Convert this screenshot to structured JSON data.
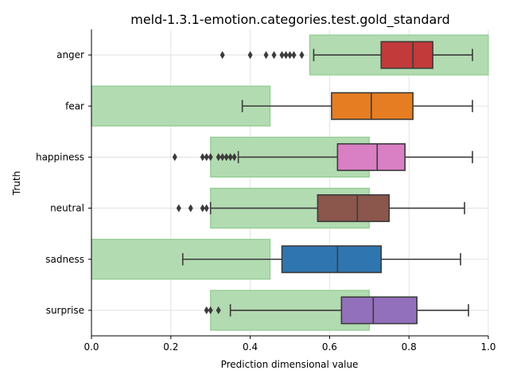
{
  "chart_data": {
    "type": "box",
    "orientation": "horizontal",
    "title": "meld-1.3.1-emotion.categories.test.gold_standard",
    "xlabel": "Prediction dimensional value",
    "ylabel": "Truth",
    "xlim": [
      0,
      1
    ],
    "xticks": [
      "0.0",
      "0.2",
      "0.4",
      "0.6",
      "0.8",
      "1.0"
    ],
    "grid": true,
    "background_range_color": "#b2dbb1",
    "categories": [
      {
        "label": "anger",
        "color": "#c33a3b",
        "range": [
          0.55,
          1.0
        ],
        "whisker_low": 0.56,
        "q1": 0.73,
        "median": 0.81,
        "q3": 0.86,
        "whisker_high": 0.96,
        "outliers": [
          0.33,
          0.4,
          0.44,
          0.46,
          0.48,
          0.49,
          0.5,
          0.51,
          0.53
        ]
      },
      {
        "label": "fear",
        "color": "#e67d22",
        "range": [
          0.0,
          0.45
        ],
        "whisker_low": 0.38,
        "q1": 0.605,
        "median": 0.705,
        "q3": 0.81,
        "whisker_high": 0.96,
        "outliers": []
      },
      {
        "label": "happiness",
        "color": "#d97fc3",
        "range": [
          0.3,
          0.7
        ],
        "whisker_low": 0.37,
        "q1": 0.62,
        "median": 0.72,
        "q3": 0.79,
        "whisker_high": 0.96,
        "outliers": [
          0.21,
          0.28,
          0.29,
          0.3,
          0.32,
          0.33,
          0.34,
          0.35,
          0.36
        ]
      },
      {
        "label": "neutral",
        "color": "#8b564c",
        "range": [
          0.3,
          0.7
        ],
        "whisker_low": 0.3,
        "q1": 0.57,
        "median": 0.67,
        "q3": 0.75,
        "whisker_high": 0.94,
        "outliers": [
          0.22,
          0.25,
          0.28,
          0.29
        ]
      },
      {
        "label": "sadness",
        "color": "#2f76b1",
        "range": [
          0.0,
          0.45
        ],
        "whisker_low": 0.23,
        "q1": 0.48,
        "median": 0.62,
        "q3": 0.73,
        "whisker_high": 0.93,
        "outliers": []
      },
      {
        "label": "surprise",
        "color": "#9370bb",
        "range": [
          0.3,
          0.7
        ],
        "whisker_low": 0.35,
        "q1": 0.63,
        "median": 0.71,
        "q3": 0.82,
        "whisker_high": 0.95,
        "outliers": [
          0.29,
          0.3,
          0.32
        ]
      }
    ]
  }
}
